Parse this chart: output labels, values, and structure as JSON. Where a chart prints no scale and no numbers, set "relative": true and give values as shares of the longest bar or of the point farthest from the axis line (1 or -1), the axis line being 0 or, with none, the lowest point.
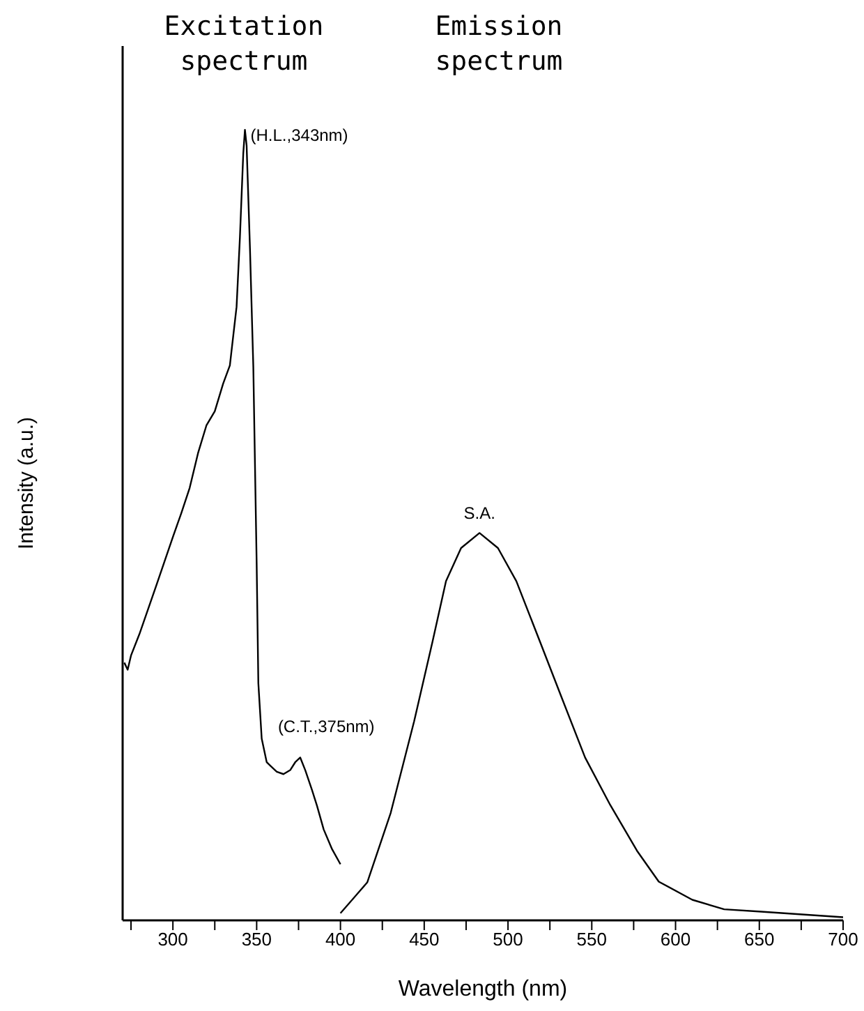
{
  "chart_data": {
    "type": "line",
    "relative": true,
    "xlabel": "Wavelength (nm)",
    "ylabel": "Intensity (a.u.)",
    "xlim": [
      270,
      700
    ],
    "xticks": [
      {
        "value": 275,
        "label": null
      },
      300,
      {
        "value": 325,
        "label": null
      },
      350,
      {
        "value": 375,
        "label": null
      },
      400,
      {
        "value": 425,
        "label": null
      },
      450,
      {
        "value": 475,
        "label": null
      },
      500,
      {
        "value": 525,
        "label": null
      },
      550,
      {
        "value": 575,
        "label": null
      },
      600,
      {
        "value": 625,
        "label": null
      },
      650,
      {
        "value": 675,
        "label": null
      },
      700
    ],
    "grid": false,
    "legend": false,
    "marker": "none",
    "line_style": "solid",
    "series": [
      {
        "color": "#000000",
        "x": [
          271,
          273,
          275,
          280,
          290,
          300,
          305,
          310,
          315,
          320,
          325,
          330,
          334,
          338,
          340,
          342,
          343,
          344,
          346,
          348,
          350,
          351,
          353,
          356,
          358,
          362,
          366,
          370,
          373,
          376,
          379,
          383,
          386,
          390,
          395,
          400
        ],
        "values": [
          0.326,
          0.317,
          0.335,
          0.362,
          0.423,
          0.485,
          0.515,
          0.547,
          0.591,
          0.626,
          0.644,
          0.679,
          0.702,
          0.776,
          0.864,
          0.97,
          1,
          0.98,
          0.85,
          0.7,
          0.45,
          0.3,
          0.23,
          0.2,
          0.196,
          0.188,
          0.185,
          0.19,
          0.2,
          0.206,
          0.19,
          0.165,
          0.145,
          0.115,
          0.09,
          0.071
        ]
      },
      {
        "color": "#000000",
        "x": [
          400,
          416,
          430,
          444,
          455,
          463,
          472,
          483,
          494,
          505,
          519,
          532,
          546,
          561,
          577,
          590,
          610,
          629,
          651,
          700
        ],
        "values": [
          0.009,
          0.048,
          0.136,
          0.252,
          0.353,
          0.429,
          0.471,
          0.49,
          0.471,
          0.429,
          0.353,
          0.282,
          0.206,
          0.146,
          0.088,
          0.049,
          0.026,
          0.014,
          0.011,
          0.004
        ]
      }
    ],
    "annotations": [
      "Excitation spectrum",
      "Emission spectrum",
      {
        "text": "(H.L.,343nm)",
        "x": 343,
        "y": 1
      },
      {
        "text": "(C.T.,375nm)",
        "x": 376,
        "y": 0.206
      },
      {
        "text": "S.A.",
        "x": 483,
        "y": 0.49
      }
    ]
  }
}
